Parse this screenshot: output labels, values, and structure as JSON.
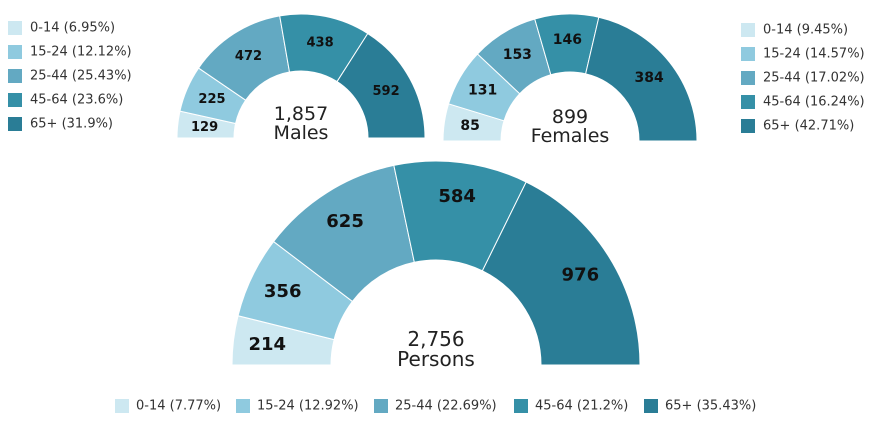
{
  "colors": [
    "#cde8f1",
    "#8fcadf",
    "#63a9c2",
    "#3590a7",
    "#2a7d96"
  ],
  "chart_data": [
    {
      "type": "pie",
      "total_label": "1,857",
      "name": "Males",
      "categories": [
        "0-14",
        "15-24",
        "25-44",
        "45-64",
        "65+"
      ],
      "values": [
        129,
        225,
        472,
        438,
        592
      ],
      "legend": [
        "0-14 (6.95%)",
        "15-24 (12.12%)",
        "25-44 (25.43%)",
        "45-64 (23.6%)",
        "65+ (31.9%)"
      ]
    },
    {
      "type": "pie",
      "total_label": "899",
      "name": "Females",
      "categories": [
        "0-14",
        "15-24",
        "25-44",
        "45-64",
        "65+"
      ],
      "values": [
        85,
        131,
        153,
        146,
        384
      ],
      "legend": [
        "0-14 (9.45%)",
        "15-24 (14.57%)",
        "25-44 (17.02%)",
        "45-64 (16.24%)",
        "65+ (42.71%)"
      ]
    },
    {
      "type": "pie",
      "total_label": "2,756",
      "name": "Persons",
      "categories": [
        "0-14",
        "15-24",
        "25-44",
        "45-64",
        "65+"
      ],
      "values": [
        214,
        356,
        625,
        584,
        976
      ],
      "legend": [
        "0-14 (7.77%)",
        "15-24 (12.92%)",
        "25-44 (22.69%)",
        "45-64 (21.2%)",
        "65+ (35.43%)"
      ]
    }
  ]
}
